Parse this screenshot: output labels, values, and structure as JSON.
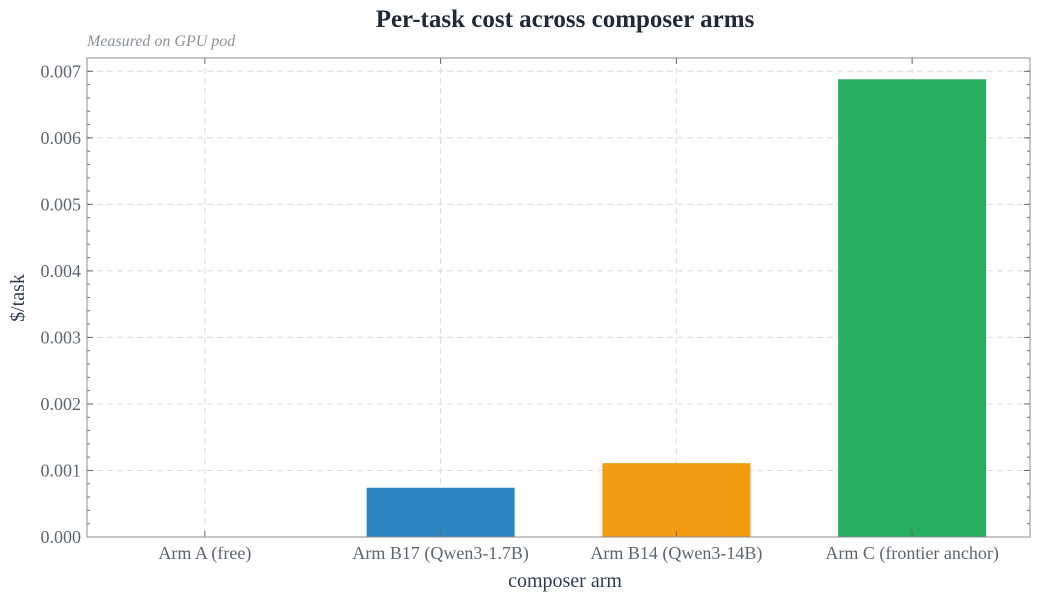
{
  "chart_data": {
    "type": "bar",
    "title": "Per-task cost across composer arms",
    "subtitle": "Measured on GPU pod",
    "xlabel": "composer arm",
    "ylabel": "$/task",
    "categories": [
      "Arm A (free)",
      "Arm B17 (Qwen3-1.7B)",
      "Arm B14 (Qwen3-14B)",
      "Arm C (frontier anchor)"
    ],
    "values": [
      0.0,
      0.00074,
      0.00111,
      0.00688
    ],
    "colors": [
      "#3b82c4",
      "#2e86c1",
      "#f39c12",
      "#27ae60"
    ],
    "ylim": [
      0,
      0.0072
    ],
    "yticks": [
      0.0,
      0.001,
      0.002,
      0.003,
      0.004,
      0.005,
      0.006,
      0.007
    ],
    "ytick_labels": [
      "0.000",
      "0.001",
      "0.002",
      "0.003",
      "0.004",
      "0.005",
      "0.006",
      "0.007"
    ],
    "grid": true,
    "legend": "none"
  }
}
